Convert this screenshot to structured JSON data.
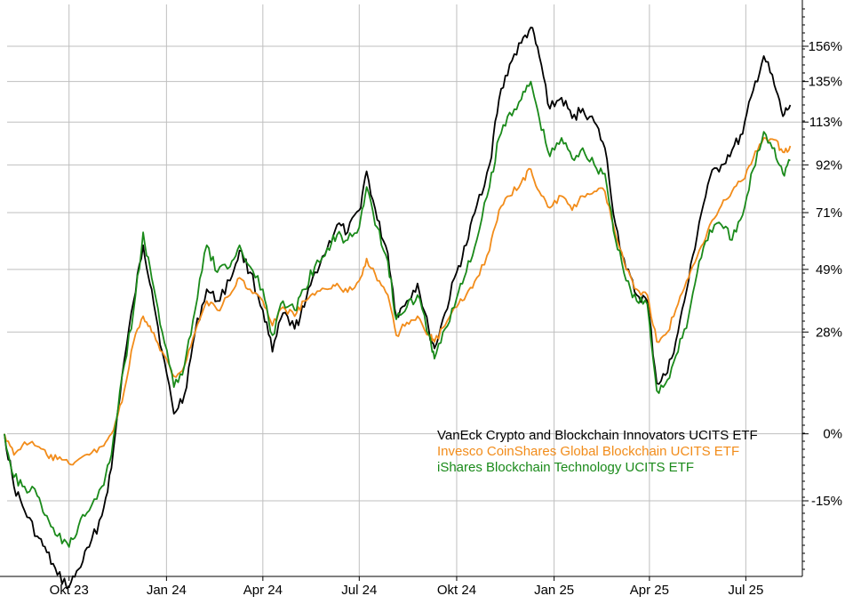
{
  "chart_data": {
    "type": "line",
    "title": "",
    "xlabel": "",
    "ylabel": "",
    "grid": true,
    "legend_position": "bottom-right",
    "x_ticks": [
      {
        "label": "Okt 23",
        "date": "2023-10-01"
      },
      {
        "label": "Jan 24",
        "date": "2024-01-01"
      },
      {
        "label": "Apr 24",
        "date": "2024-04-01"
      },
      {
        "label": "Jul 24",
        "date": "2024-07-01"
      },
      {
        "label": "Okt 24",
        "date": "2024-10-01"
      },
      {
        "label": "Jan 25",
        "date": "2025-01-01"
      },
      {
        "label": "Apr 25",
        "date": "2025-04-01"
      },
      {
        "label": "Jul 25",
        "date": "2025-07-01"
      }
    ],
    "y_ticks": [
      {
        "label": "156%",
        "value": 156
      },
      {
        "label": "135%",
        "value": 135
      },
      {
        "label": "113%",
        "value": 113
      },
      {
        "label": "92%",
        "value": 92
      },
      {
        "label": "71%",
        "value": 71
      },
      {
        "label": "49%",
        "value": 49
      },
      {
        "label": "28%",
        "value": 28
      },
      {
        "label": "0%",
        "value": 0
      },
      {
        "label": "-15%",
        "value": -15
      }
    ],
    "x_range": [
      "2023-08-01",
      "2025-08-15"
    ],
    "y_scale": "log",
    "series": [
      {
        "name": "VanEck Crypto and Blockchain Innovators UCITS ETF",
        "color": "#000000",
        "points": [
          [
            "2023-08-01",
            0
          ],
          [
            "2023-08-10",
            -12
          ],
          [
            "2023-08-20",
            -17
          ],
          [
            "2023-09-01",
            -22
          ],
          [
            "2023-09-10",
            -25
          ],
          [
            "2023-09-20",
            -29
          ],
          [
            "2023-10-01",
            -31
          ],
          [
            "2023-10-10",
            -28
          ],
          [
            "2023-10-20",
            -24
          ],
          [
            "2023-11-01",
            -18
          ],
          [
            "2023-11-10",
            -8
          ],
          [
            "2023-11-20",
            15
          ],
          [
            "2023-12-01",
            38
          ],
          [
            "2023-12-10",
            58
          ],
          [
            "2023-12-18",
            42
          ],
          [
            "2023-12-28",
            22
          ],
          [
            "2024-01-08",
            5
          ],
          [
            "2024-01-18",
            10
          ],
          [
            "2024-01-28",
            28
          ],
          [
            "2024-02-08",
            42
          ],
          [
            "2024-02-18",
            38
          ],
          [
            "2024-03-01",
            45
          ],
          [
            "2024-03-10",
            56
          ],
          [
            "2024-03-20",
            48
          ],
          [
            "2024-04-01",
            35
          ],
          [
            "2024-04-10",
            22
          ],
          [
            "2024-04-20",
            34
          ],
          [
            "2024-05-01",
            29
          ],
          [
            "2024-05-10",
            36
          ],
          [
            "2024-05-20",
            48
          ],
          [
            "2024-06-01",
            57
          ],
          [
            "2024-06-10",
            66
          ],
          [
            "2024-06-20",
            63
          ],
          [
            "2024-07-01",
            72
          ],
          [
            "2024-07-08",
            89
          ],
          [
            "2024-07-18",
            68
          ],
          [
            "2024-07-28",
            55
          ],
          [
            "2024-08-05",
            33
          ],
          [
            "2024-08-15",
            38
          ],
          [
            "2024-08-25",
            44
          ],
          [
            "2024-09-05",
            28
          ],
          [
            "2024-09-10",
            23
          ],
          [
            "2024-09-20",
            34
          ],
          [
            "2024-10-01",
            48
          ],
          [
            "2024-10-10",
            58
          ],
          [
            "2024-10-20",
            74
          ],
          [
            "2024-11-01",
            92
          ],
          [
            "2024-11-10",
            125
          ],
          [
            "2024-11-20",
            145
          ],
          [
            "2024-12-01",
            158
          ],
          [
            "2024-12-10",
            168
          ],
          [
            "2024-12-18",
            150
          ],
          [
            "2024-12-28",
            120
          ],
          [
            "2025-01-08",
            126
          ],
          [
            "2025-01-18",
            115
          ],
          [
            "2025-01-28",
            120
          ],
          [
            "2025-02-08",
            113
          ],
          [
            "2025-02-18",
            100
          ],
          [
            "2025-02-28",
            66
          ],
          [
            "2025-03-10",
            49
          ],
          [
            "2025-03-20",
            40
          ],
          [
            "2025-03-30",
            38
          ],
          [
            "2025-04-08",
            13
          ],
          [
            "2025-04-18",
            16
          ],
          [
            "2025-04-28",
            28
          ],
          [
            "2025-05-08",
            45
          ],
          [
            "2025-05-18",
            67
          ],
          [
            "2025-05-28",
            86
          ],
          [
            "2025-06-08",
            92
          ],
          [
            "2025-06-18",
            99
          ],
          [
            "2025-06-28",
            107
          ],
          [
            "2025-07-08",
            130
          ],
          [
            "2025-07-18",
            150
          ],
          [
            "2025-07-28",
            133
          ],
          [
            "2025-08-05",
            116
          ],
          [
            "2025-08-12",
            122
          ]
        ]
      },
      {
        "name": "Invesco CoinShares Global Blockchain UCITS ETF",
        "color": "#f28c1a",
        "points": [
          [
            "2023-08-01",
            0
          ],
          [
            "2023-08-10",
            -5
          ],
          [
            "2023-08-20",
            -2
          ],
          [
            "2023-09-01",
            -3
          ],
          [
            "2023-09-10",
            -5
          ],
          [
            "2023-09-20",
            -6
          ],
          [
            "2023-10-01",
            -7
          ],
          [
            "2023-10-10",
            -6
          ],
          [
            "2023-10-20",
            -5
          ],
          [
            "2023-11-01",
            -3
          ],
          [
            "2023-11-10",
            0
          ],
          [
            "2023-11-20",
            8
          ],
          [
            "2023-12-01",
            25
          ],
          [
            "2023-12-10",
            33
          ],
          [
            "2023-12-18",
            28
          ],
          [
            "2023-12-28",
            22
          ],
          [
            "2024-01-08",
            15
          ],
          [
            "2024-01-18",
            18
          ],
          [
            "2024-01-28",
            28
          ],
          [
            "2024-02-08",
            38
          ],
          [
            "2024-02-18",
            35
          ],
          [
            "2024-03-01",
            40
          ],
          [
            "2024-03-10",
            46
          ],
          [
            "2024-03-20",
            42
          ],
          [
            "2024-04-01",
            38
          ],
          [
            "2024-04-10",
            30
          ],
          [
            "2024-04-20",
            36
          ],
          [
            "2024-05-01",
            33
          ],
          [
            "2024-05-10",
            38
          ],
          [
            "2024-05-20",
            40
          ],
          [
            "2024-06-01",
            42
          ],
          [
            "2024-06-10",
            44
          ],
          [
            "2024-06-20",
            41
          ],
          [
            "2024-07-01",
            45
          ],
          [
            "2024-07-08",
            53
          ],
          [
            "2024-07-18",
            45
          ],
          [
            "2024-07-28",
            40
          ],
          [
            "2024-08-05",
            27
          ],
          [
            "2024-08-15",
            31
          ],
          [
            "2024-08-25",
            33
          ],
          [
            "2024-09-05",
            27
          ],
          [
            "2024-09-10",
            25
          ],
          [
            "2024-09-20",
            30
          ],
          [
            "2024-10-01",
            36
          ],
          [
            "2024-10-10",
            40
          ],
          [
            "2024-10-20",
            46
          ],
          [
            "2024-11-01",
            56
          ],
          [
            "2024-11-10",
            72
          ],
          [
            "2024-11-20",
            78
          ],
          [
            "2024-12-01",
            84
          ],
          [
            "2024-12-10",
            90
          ],
          [
            "2024-12-18",
            80
          ],
          [
            "2024-12-28",
            73
          ],
          [
            "2025-01-08",
            78
          ],
          [
            "2025-01-18",
            72
          ],
          [
            "2025-01-28",
            78
          ],
          [
            "2025-02-08",
            80
          ],
          [
            "2025-02-18",
            80
          ],
          [
            "2025-02-28",
            62
          ],
          [
            "2025-03-10",
            49
          ],
          [
            "2025-03-20",
            42
          ],
          [
            "2025-03-30",
            40
          ],
          [
            "2025-04-08",
            25
          ],
          [
            "2025-04-18",
            28
          ],
          [
            "2025-04-28",
            37
          ],
          [
            "2025-05-08",
            46
          ],
          [
            "2025-05-18",
            56
          ],
          [
            "2025-05-28",
            66
          ],
          [
            "2025-06-08",
            74
          ],
          [
            "2025-06-18",
            80
          ],
          [
            "2025-06-28",
            85
          ],
          [
            "2025-07-08",
            95
          ],
          [
            "2025-07-18",
            105
          ],
          [
            "2025-07-28",
            104
          ],
          [
            "2025-08-05",
            98
          ],
          [
            "2025-08-12",
            101
          ]
        ]
      },
      {
        "name": "iShares Blockchain Technology UCITS ETF",
        "color": "#1a8a1a",
        "points": [
          [
            "2023-08-01",
            0
          ],
          [
            "2023-08-10",
            -10
          ],
          [
            "2023-08-20",
            -12
          ],
          [
            "2023-09-01",
            -14
          ],
          [
            "2023-09-10",
            -18
          ],
          [
            "2023-09-20",
            -22
          ],
          [
            "2023-10-01",
            -24
          ],
          [
            "2023-10-10",
            -20
          ],
          [
            "2023-10-20",
            -17
          ],
          [
            "2023-11-01",
            -12
          ],
          [
            "2023-11-10",
            -5
          ],
          [
            "2023-11-20",
            15
          ],
          [
            "2023-12-01",
            35
          ],
          [
            "2023-12-10",
            63
          ],
          [
            "2023-12-18",
            46
          ],
          [
            "2023-12-28",
            28
          ],
          [
            "2024-01-08",
            12
          ],
          [
            "2024-01-18",
            18
          ],
          [
            "2024-01-28",
            35
          ],
          [
            "2024-02-08",
            58
          ],
          [
            "2024-02-18",
            48
          ],
          [
            "2024-03-01",
            50
          ],
          [
            "2024-03-10",
            58
          ],
          [
            "2024-03-20",
            50
          ],
          [
            "2024-04-01",
            42
          ],
          [
            "2024-04-10",
            27
          ],
          [
            "2024-04-20",
            38
          ],
          [
            "2024-05-01",
            35
          ],
          [
            "2024-05-10",
            42
          ],
          [
            "2024-05-20",
            50
          ],
          [
            "2024-06-01",
            57
          ],
          [
            "2024-06-10",
            62
          ],
          [
            "2024-06-20",
            60
          ],
          [
            "2024-07-01",
            65
          ],
          [
            "2024-07-08",
            82
          ],
          [
            "2024-07-18",
            65
          ],
          [
            "2024-07-28",
            52
          ],
          [
            "2024-08-05",
            32
          ],
          [
            "2024-08-15",
            36
          ],
          [
            "2024-08-25",
            40
          ],
          [
            "2024-09-05",
            27
          ],
          [
            "2024-09-10",
            20
          ],
          [
            "2024-09-20",
            29
          ],
          [
            "2024-10-01",
            39
          ],
          [
            "2024-10-10",
            48
          ],
          [
            "2024-10-20",
            60
          ],
          [
            "2024-11-01",
            82
          ],
          [
            "2024-11-10",
            105
          ],
          [
            "2024-11-20",
            118
          ],
          [
            "2024-12-01",
            125
          ],
          [
            "2024-12-10",
            135
          ],
          [
            "2024-12-18",
            115
          ],
          [
            "2024-12-28",
            96
          ],
          [
            "2025-01-08",
            105
          ],
          [
            "2025-01-18",
            95
          ],
          [
            "2025-01-28",
            100
          ],
          [
            "2025-02-08",
            92
          ],
          [
            "2025-02-18",
            88
          ],
          [
            "2025-02-28",
            60
          ],
          [
            "2025-03-10",
            45
          ],
          [
            "2025-03-20",
            38
          ],
          [
            "2025-03-30",
            37
          ],
          [
            "2025-04-08",
            11
          ],
          [
            "2025-04-18",
            14
          ],
          [
            "2025-04-28",
            22
          ],
          [
            "2025-05-08",
            33
          ],
          [
            "2025-05-18",
            52
          ],
          [
            "2025-05-28",
            64
          ],
          [
            "2025-06-08",
            66
          ],
          [
            "2025-06-18",
            60
          ],
          [
            "2025-06-28",
            70
          ],
          [
            "2025-07-08",
            90
          ],
          [
            "2025-07-18",
            108
          ],
          [
            "2025-07-28",
            100
          ],
          [
            "2025-08-05",
            88
          ],
          [
            "2025-08-12",
            94
          ]
        ]
      }
    ]
  }
}
